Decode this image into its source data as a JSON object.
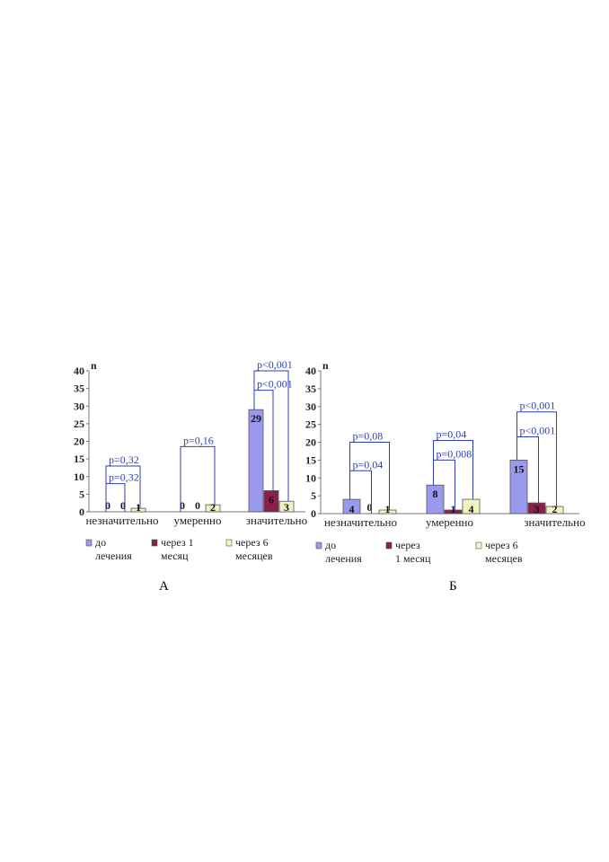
{
  "chart_data": [
    {
      "type": "bar",
      "panel_caption": "А",
      "ylabel": "n",
      "ylim": [
        0,
        40
      ],
      "yticks": [
        0,
        5,
        10,
        15,
        20,
        25,
        30,
        35,
        40
      ],
      "categories": [
        "незначительно",
        "умеренно",
        "значительно"
      ],
      "series": [
        {
          "name": [
            "до",
            "лечения"
          ],
          "color": "#9a99ee",
          "values": [
            0,
            0,
            29
          ]
        },
        {
          "name": [
            "через 1",
            "месяц"
          ],
          "color": "#8b1f4a",
          "values": [
            0,
            0,
            6
          ]
        },
        {
          "name": [
            "через 6",
            "месяцев"
          ],
          "color": "#f3f3c2",
          "values": [
            1,
            2,
            3
          ]
        }
      ],
      "annotations": [
        {
          "text": "p=0,32",
          "category": 0,
          "from": 0,
          "to": 2,
          "level": 13
        },
        {
          "text": "p=0,32",
          "category": 0,
          "from": 0,
          "to": 1,
          "level": 8
        },
        {
          "text": "p=0,16",
          "category": 1,
          "from": 0,
          "to": 2,
          "level": 18.5
        },
        {
          "text": "p<0,001",
          "category": 2,
          "from": 0,
          "to": 2,
          "level": 40
        },
        {
          "text": "p<0,001",
          "category": 2,
          "from": 0,
          "to": 1,
          "level": 34.5
        }
      ]
    },
    {
      "type": "bar",
      "panel_caption": "Б",
      "ylabel": "n",
      "ylim": [
        0,
        40
      ],
      "yticks": [
        0,
        5,
        10,
        15,
        20,
        25,
        30,
        35,
        40
      ],
      "categories": [
        "незначительно",
        "умеренно",
        "значительно"
      ],
      "series": [
        {
          "name": [
            "до",
            "лечения"
          ],
          "color": "#9a99ee",
          "values": [
            4,
            8,
            15
          ]
        },
        {
          "name": [
            "через",
            "1 месяц"
          ],
          "color": "#8b1f4a",
          "values": [
            0,
            1,
            3
          ]
        },
        {
          "name": [
            "через 6",
            "месяцев"
          ],
          "color": "#f3f3c2",
          "values": [
            1,
            4,
            2
          ]
        }
      ],
      "annotations": [
        {
          "text": "p=0,08",
          "category": 0,
          "from": 0,
          "to": 2,
          "level": 20
        },
        {
          "text": "p=0,04",
          "category": 0,
          "from": 0,
          "to": 1,
          "level": 12
        },
        {
          "text": "p=0,04",
          "category": 1,
          "from": 0,
          "to": 2,
          "level": 20.5
        },
        {
          "text": "p=0,008",
          "category": 1,
          "from": 0,
          "to": 1,
          "level": 15
        },
        {
          "text": "p<0,001",
          "category": 2,
          "from": 0,
          "to": 2,
          "level": 28.5
        },
        {
          "text": "p<0,001",
          "category": 2,
          "from": 0,
          "to": 1,
          "level": 21.5
        }
      ]
    }
  ]
}
